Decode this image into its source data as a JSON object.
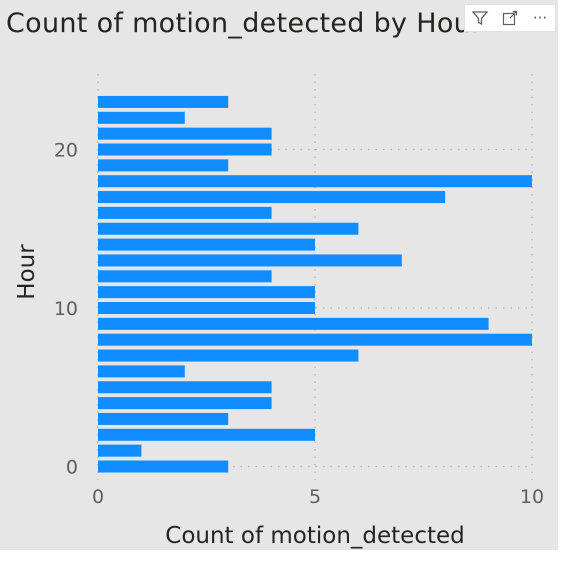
{
  "chart_data": {
    "type": "bar",
    "orientation": "horizontal",
    "title": "Count of motion_detected by Hour",
    "xlabel": "Count of motion_detected",
    "ylabel": "Hour",
    "categories": [
      0,
      1,
      2,
      3,
      4,
      5,
      6,
      7,
      8,
      9,
      10,
      11,
      12,
      13,
      14,
      15,
      16,
      17,
      18,
      19,
      20,
      21,
      22,
      23
    ],
    "values": [
      3,
      1,
      5,
      3,
      4,
      4,
      2,
      6,
      10,
      9,
      5,
      5,
      4,
      7,
      5,
      6,
      4,
      8,
      10,
      3,
      4,
      4,
      2,
      3
    ],
    "xlim": [
      0,
      10
    ],
    "xticks": [
      0,
      5,
      10
    ],
    "ylim": [
      -0.5,
      24
    ],
    "yticks": [
      0,
      10,
      20
    ],
    "grid": true,
    "bar_color": "#118dff"
  },
  "toolbar": {
    "filter_icon": "filter-icon",
    "focus_icon": "focus-mode-icon",
    "more_icon": "more-options-icon",
    "more_label": "···"
  }
}
